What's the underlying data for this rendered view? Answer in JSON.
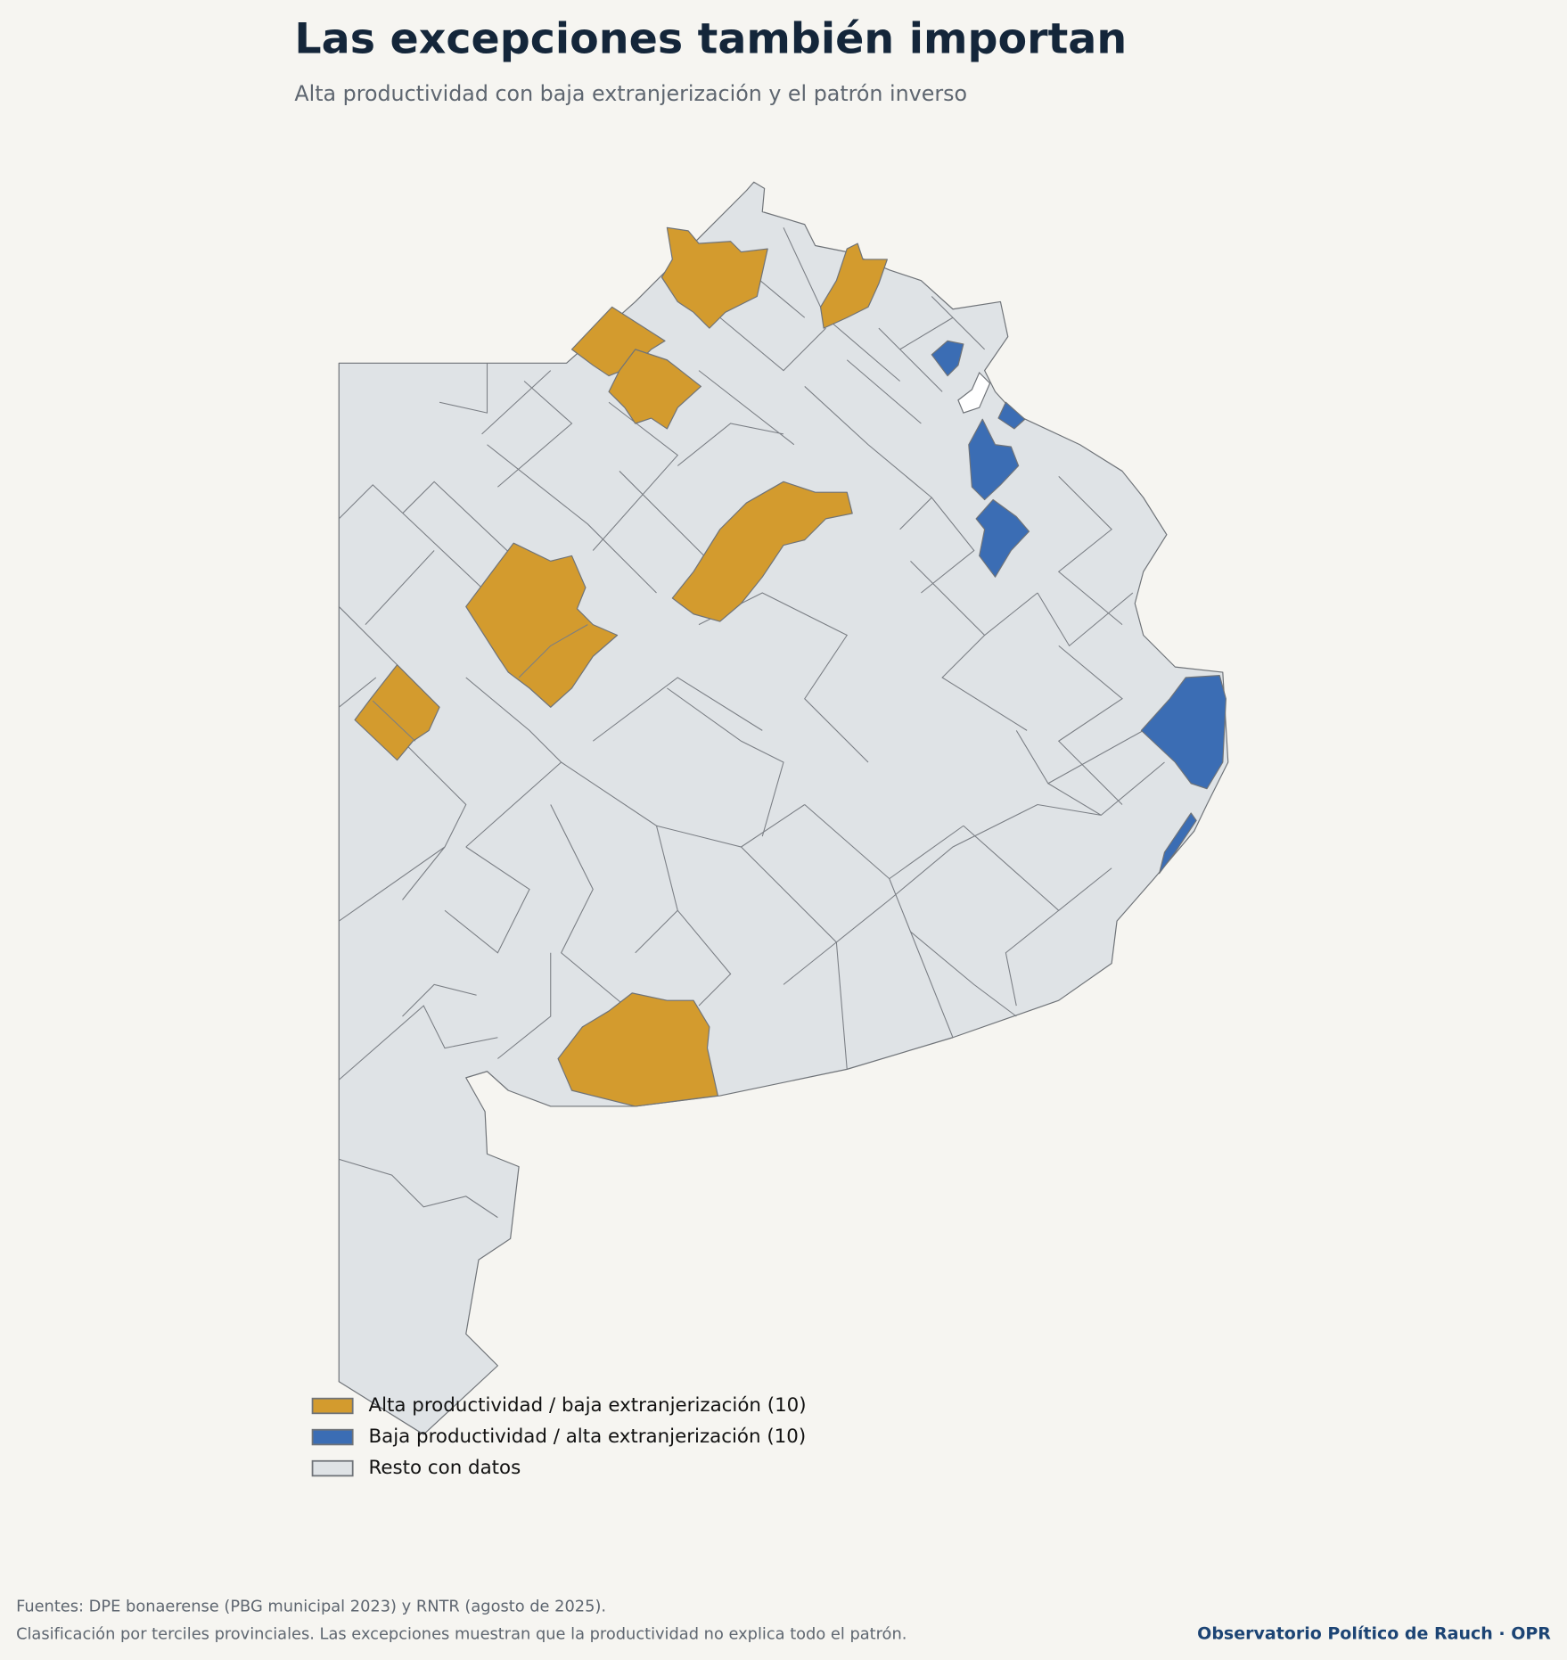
{
  "header": {
    "title": "Las excepciones también importan",
    "subtitle": "Alta productividad con baja extranjerización y el patrón inverso"
  },
  "legend": [
    {
      "label": "Alta productividad / baja extranjerización (10)",
      "color": "#d39b2e"
    },
    {
      "label": "Baja productividad / alta extranjerización (10)",
      "color": "#3b6db4"
    },
    {
      "label": "Resto con datos",
      "color": "#dfe3e6"
    }
  ],
  "footer": {
    "sources": "Fuentes: DPE bonaerense (PBG municipal 2023) y RNTR (agosto de 2025).",
    "note": "Clasificación por terciles provinciales. Las excepciones muestran que la productividad no explica todo el patrón.",
    "brand": "Observatorio Político de Rauch · OPR"
  }
}
